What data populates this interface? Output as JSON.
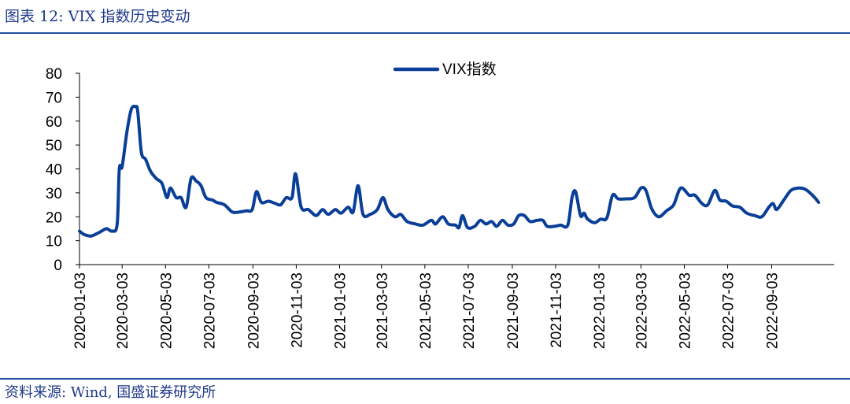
{
  "header": {
    "title": "图表 12: VIX 指数历史变动"
  },
  "footer": {
    "source": "资料来源: Wind, 国盛证券研究所"
  },
  "colors": {
    "accent": "#1f4e9c",
    "series": "#0a3f97"
  },
  "chart_data": {
    "type": "line",
    "title": "",
    "xlabel": "",
    "ylabel": "",
    "ylim": [
      0,
      80
    ],
    "yticks": [
      0,
      10,
      20,
      30,
      40,
      50,
      60,
      70,
      80
    ],
    "xlim": [
      "2020-01-03",
      "2022-11-30"
    ],
    "xticks": [
      "2020-01-03",
      "2020-03-03",
      "2020-05-03",
      "2020-07-03",
      "2020-09-03",
      "2020-11-03",
      "2021-01-03",
      "2021-03-03",
      "2021-05-03",
      "2021-07-03",
      "2021-09-03",
      "2021-11-03",
      "2022-01-03",
      "2022-03-03",
      "2022-05-03",
      "2022-07-03",
      "2022-09-03"
    ],
    "grid": false,
    "legend_position": "top-center",
    "series": [
      {
        "name": "VIX指数",
        "points": [
          [
            "2020-01-03",
            14
          ],
          [
            "2020-01-10",
            12.5
          ],
          [
            "2020-01-20",
            12
          ],
          [
            "2020-01-31",
            13.5
          ],
          [
            "2020-02-10",
            15
          ],
          [
            "2020-02-18",
            14
          ],
          [
            "2020-02-25",
            17
          ],
          [
            "2020-02-28",
            40
          ],
          [
            "2020-03-03",
            41
          ],
          [
            "2020-03-10",
            56
          ],
          [
            "2020-03-16",
            65
          ],
          [
            "2020-03-22",
            66
          ],
          [
            "2020-03-25",
            64
          ],
          [
            "2020-03-30",
            47
          ],
          [
            "2020-04-05",
            44
          ],
          [
            "2020-04-12",
            39
          ],
          [
            "2020-04-20",
            36
          ],
          [
            "2020-04-28",
            34
          ],
          [
            "2020-05-05",
            28
          ],
          [
            "2020-05-10",
            32
          ],
          [
            "2020-05-18",
            28
          ],
          [
            "2020-05-25",
            28
          ],
          [
            "2020-06-01",
            24
          ],
          [
            "2020-06-08",
            36
          ],
          [
            "2020-06-15",
            35
          ],
          [
            "2020-06-22",
            33
          ],
          [
            "2020-06-29",
            28
          ],
          [
            "2020-07-08",
            27
          ],
          [
            "2020-07-14",
            26
          ],
          [
            "2020-07-25",
            25
          ],
          [
            "2020-08-05",
            22
          ],
          [
            "2020-08-15",
            22
          ],
          [
            "2020-08-25",
            22.5
          ],
          [
            "2020-09-02",
            23
          ],
          [
            "2020-09-08",
            30.5
          ],
          [
            "2020-09-15",
            26
          ],
          [
            "2020-09-25",
            26.5
          ],
          [
            "2020-10-05",
            25.5
          ],
          [
            "2020-10-12",
            25
          ],
          [
            "2020-10-20",
            28
          ],
          [
            "2020-10-28",
            28
          ],
          [
            "2020-11-02",
            38
          ],
          [
            "2020-11-10",
            24
          ],
          [
            "2020-11-20",
            23
          ],
          [
            "2020-12-01",
            20.5
          ],
          [
            "2020-12-10",
            23
          ],
          [
            "2020-12-18",
            21
          ],
          [
            "2020-12-28",
            23
          ],
          [
            "2021-01-05",
            21.5
          ],
          [
            "2021-01-15",
            24
          ],
          [
            "2021-01-22",
            22
          ],
          [
            "2021-01-29",
            33
          ],
          [
            "2021-02-05",
            21
          ],
          [
            "2021-02-15",
            21
          ],
          [
            "2021-02-25",
            23
          ],
          [
            "2021-03-05",
            28
          ],
          [
            "2021-03-12",
            23
          ],
          [
            "2021-03-22",
            20
          ],
          [
            "2021-03-30",
            21
          ],
          [
            "2021-04-08",
            18
          ],
          [
            "2021-04-20",
            17
          ],
          [
            "2021-04-30",
            16.5
          ],
          [
            "2021-05-12",
            18.5
          ],
          [
            "2021-05-18",
            17
          ],
          [
            "2021-05-28",
            20
          ],
          [
            "2021-06-05",
            17
          ],
          [
            "2021-06-15",
            16.5
          ],
          [
            "2021-06-20",
            15.5
          ],
          [
            "2021-06-25",
            20.5
          ],
          [
            "2021-07-02",
            15.5
          ],
          [
            "2021-07-12",
            16
          ],
          [
            "2021-07-20",
            18.5
          ],
          [
            "2021-07-28",
            17
          ],
          [
            "2021-08-05",
            18
          ],
          [
            "2021-08-12",
            16
          ],
          [
            "2021-08-20",
            18.5
          ],
          [
            "2021-08-28",
            16.5
          ],
          [
            "2021-09-05",
            17
          ],
          [
            "2021-09-12",
            20.5
          ],
          [
            "2021-09-20",
            20.5
          ],
          [
            "2021-09-28",
            18
          ],
          [
            "2021-10-08",
            18.5
          ],
          [
            "2021-10-16",
            18.5
          ],
          [
            "2021-10-22",
            16
          ],
          [
            "2021-11-01",
            16
          ],
          [
            "2021-11-10",
            16.5
          ],
          [
            "2021-11-20",
            16.5
          ],
          [
            "2021-11-26",
            28
          ],
          [
            "2021-12-01",
            30.5
          ],
          [
            "2021-12-08",
            20.5
          ],
          [
            "2021-12-13",
            21.5
          ],
          [
            "2021-12-18",
            19
          ],
          [
            "2021-12-28",
            17.5
          ],
          [
            "2022-01-05",
            19
          ],
          [
            "2022-01-14",
            19.5
          ],
          [
            "2022-01-22",
            29
          ],
          [
            "2022-01-30",
            27.5
          ],
          [
            "2022-02-10",
            27.5
          ],
          [
            "2022-02-22",
            28
          ],
          [
            "2022-03-03",
            32
          ],
          [
            "2022-03-10",
            31
          ],
          [
            "2022-03-18",
            23.5
          ],
          [
            "2022-03-28",
            20
          ],
          [
            "2022-04-08",
            22.5
          ],
          [
            "2022-04-18",
            25
          ],
          [
            "2022-04-28",
            32
          ],
          [
            "2022-05-10",
            29
          ],
          [
            "2022-05-18",
            29
          ],
          [
            "2022-05-28",
            25.5
          ],
          [
            "2022-06-05",
            25
          ],
          [
            "2022-06-15",
            31
          ],
          [
            "2022-06-22",
            27
          ],
          [
            "2022-07-01",
            26.5
          ],
          [
            "2022-07-10",
            24.5
          ],
          [
            "2022-07-20",
            24
          ],
          [
            "2022-07-30",
            21.5
          ],
          [
            "2022-08-10",
            20.5
          ],
          [
            "2022-08-20",
            20
          ],
          [
            "2022-08-30",
            24
          ],
          [
            "2022-09-05",
            25.5
          ],
          [
            "2022-09-10",
            23
          ],
          [
            "2022-09-20",
            27
          ],
          [
            "2022-09-30",
            31
          ],
          [
            "2022-10-10",
            32
          ],
          [
            "2022-10-20",
            31.5
          ],
          [
            "2022-11-01",
            28.5
          ],
          [
            "2022-11-08",
            26
          ]
        ]
      }
    ]
  }
}
